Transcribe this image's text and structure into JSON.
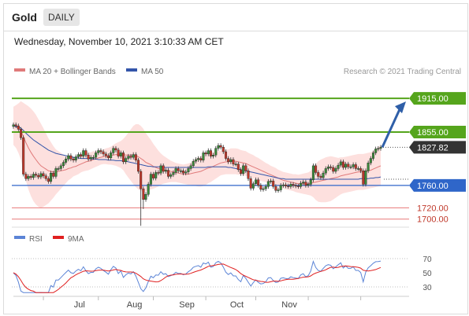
{
  "header": {
    "asset": "Gold",
    "timeframe": "DAILY"
  },
  "timestamp": "Wednesday, November 10, 2021 3:10:33 AM CET",
  "colors": {
    "up": "#3a8a3a",
    "down": "#c0392b",
    "ma20": "#e07a7a",
    "ma50": "#3355aa",
    "band": "#fde0de",
    "resistance": "#55a51c",
    "support": "#2f66c9",
    "target_line": "#e87878",
    "current": "#333333",
    "arrow": "#2f5fa8",
    "rsi": "#5b84d6",
    "rsi_ma": "#e02020"
  },
  "chart_data": [
    {
      "type": "candlestick",
      "legend": [
        {
          "label": "MA 20 + Bollinger Bands",
          "color": "#e07a7a"
        },
        {
          "label": "MA 50",
          "color": "#3355aa"
        }
      ],
      "credit": "Research © 2021 Trading Central",
      "x_ticks": [
        "Jul",
        "Aug",
        "Sep",
        "Oct",
        "Nov"
      ],
      "ylim": [
        1680,
        1960
      ],
      "levels": [
        {
          "value": 1915.0,
          "label": "1915.00",
          "kind": "resistance"
        },
        {
          "value": 1855.0,
          "label": "1855.00",
          "kind": "resistance"
        },
        {
          "value": 1827.82,
          "label": "1827.82",
          "kind": "current"
        },
        {
          "value": 1760.0,
          "label": "1760.00",
          "kind": "support"
        },
        {
          "value": 1720.0,
          "label": "1720.00",
          "kind": "target"
        },
        {
          "value": 1700.0,
          "label": "1700.00",
          "kind": "target"
        }
      ],
      "projection": {
        "from": 1827.82,
        "to": 1915.0
      },
      "closes": [
        1868,
        1866,
        1860,
        1845,
        1780,
        1772,
        1776,
        1774,
        1780,
        1778,
        1775,
        1781,
        1777,
        1772,
        1767,
        1782,
        1776,
        1790,
        1790,
        1795,
        1801,
        1807,
        1813,
        1807,
        1805,
        1811,
        1815,
        1812,
        1822,
        1814,
        1807,
        1810,
        1810,
        1818,
        1822,
        1820,
        1816,
        1813,
        1809,
        1818,
        1826,
        1823,
        1812,
        1818,
        1802,
        1808,
        1812,
        1810,
        1815,
        1805,
        1785,
        1754,
        1735,
        1744,
        1762,
        1780,
        1773,
        1783,
        1782,
        1795,
        1785,
        1787,
        1776,
        1779,
        1783,
        1790,
        1786,
        1786,
        1782,
        1784,
        1790,
        1795,
        1803,
        1806,
        1808,
        1805,
        1818,
        1816,
        1822,
        1812,
        1814,
        1826,
        1831,
        1828,
        1820,
        1808,
        1802,
        1806,
        1798,
        1798,
        1788,
        1781,
        1795,
        1786,
        1772,
        1755,
        1763,
        1770,
        1760,
        1753,
        1754,
        1758,
        1767,
        1768,
        1758,
        1751,
        1752,
        1760,
        1761,
        1759,
        1758,
        1762,
        1760,
        1759,
        1758,
        1764,
        1766,
        1760,
        1762,
        1770,
        1795,
        1783,
        1776,
        1774,
        1782,
        1790,
        1793,
        1792,
        1785,
        1790,
        1796,
        1802,
        1792,
        1798,
        1793,
        1793,
        1797,
        1790,
        1790,
        1786,
        1762,
        1786,
        1800,
        1808,
        1818,
        1825,
        1825.8,
        1827.82
      ],
      "ma20": [
        1866,
        1865,
        1862,
        1858,
        1847,
        1836,
        1827,
        1819,
        1812,
        1806,
        1800,
        1795,
        1792,
        1789,
        1786,
        1785,
        1784,
        1784,
        1785,
        1786,
        1787,
        1788,
        1790,
        1791,
        1793,
        1794,
        1796,
        1798,
        1800,
        1802,
        1803,
        1804,
        1806,
        1807,
        1809,
        1810,
        1811,
        1812,
        1812,
        1813,
        1814,
        1815,
        1815,
        1815,
        1815,
        1814,
        1814,
        1814,
        1814,
        1813,
        1811,
        1808,
        1805,
        1801,
        1799,
        1797,
        1794,
        1792,
        1790,
        1789,
        1788,
        1787,
        1786,
        1785,
        1784,
        1783,
        1782,
        1781,
        1780,
        1780,
        1780,
        1781,
        1782,
        1783,
        1784,
        1785,
        1787,
        1789,
        1791,
        1792,
        1794,
        1796,
        1798,
        1800,
        1801,
        1802,
        1802,
        1803,
        1803,
        1803,
        1802,
        1801,
        1800,
        1799,
        1797,
        1795,
        1793,
        1791,
        1789,
        1787,
        1785,
        1783,
        1781,
        1779,
        1777,
        1775,
        1773,
        1771,
        1769,
        1768,
        1767,
        1766,
        1765,
        1764,
        1763,
        1763,
        1763,
        1763,
        1763,
        1764,
        1765,
        1766,
        1767,
        1768,
        1769,
        1770,
        1771,
        1772,
        1773,
        1774,
        1775,
        1777,
        1778,
        1779,
        1780,
        1781,
        1782,
        1783,
        1784,
        1784,
        1784,
        1785,
        1786,
        1787,
        1789,
        1791,
        1793,
        1795
      ],
      "ma50": [
        1866,
        1865,
        1864,
        1862,
        1858,
        1853,
        1849,
        1845,
        1841,
        1838,
        1835,
        1832,
        1829,
        1826,
        1823,
        1821,
        1819,
        1817,
        1816,
        1815,
        1814,
        1813,
        1812,
        1811,
        1810,
        1809,
        1809,
        1808,
        1808,
        1808,
        1808,
        1807,
        1807,
        1807,
        1806,
        1806,
        1806,
        1806,
        1805,
        1805,
        1805,
        1804,
        1804,
        1804,
        1803,
        1803,
        1802,
        1801,
        1800,
        1799,
        1798,
        1797,
        1796,
        1795,
        1794,
        1794,
        1793,
        1793,
        1793,
        1793,
        1792,
        1792,
        1792,
        1792,
        1792,
        1792,
        1792,
        1792,
        1792,
        1792,
        1792,
        1792,
        1792,
        1792,
        1792,
        1792,
        1792,
        1792,
        1793,
        1793,
        1793,
        1793,
        1793,
        1793,
        1793,
        1793,
        1792,
        1792,
        1791,
        1790,
        1789,
        1788,
        1787,
        1786,
        1785,
        1784,
        1783,
        1782,
        1781,
        1780,
        1779,
        1778,
        1777,
        1776,
        1775,
        1774,
        1773,
        1772,
        1772,
        1771,
        1771,
        1771,
        1771,
        1771,
        1771,
        1771,
        1771,
        1771,
        1771,
        1771,
        1771,
        1771,
        1771,
        1771,
        1771,
        1771,
        1771,
        1771,
        1771,
        1771,
        1771,
        1771,
        1771,
        1771,
        1771,
        1771,
        1771,
        1771,
        1771,
        1772,
        1772,
        1772,
        1772,
        1773,
        1773,
        1774,
        1774,
        1775
      ],
      "band_width": [
        34,
        38,
        44,
        52,
        60,
        68,
        74,
        78,
        80,
        80,
        78,
        75,
        70,
        64,
        58,
        52,
        46,
        40,
        36,
        32,
        28,
        24,
        21,
        19,
        17,
        16,
        16,
        15,
        15,
        16,
        16,
        15,
        15,
        14,
        14,
        13,
        13,
        14,
        15,
        16,
        18,
        20,
        22,
        24,
        28,
        34,
        40,
        46,
        52,
        56,
        58,
        58,
        56,
        52,
        48,
        44,
        40,
        36,
        32,
        28,
        25,
        23,
        21,
        19,
        18,
        17,
        17,
        17,
        17,
        18,
        19,
        20,
        22,
        24,
        26,
        27,
        28,
        28,
        27,
        26,
        25,
        24,
        23,
        22,
        22,
        22,
        22,
        23,
        23,
        23,
        23,
        22,
        22,
        22,
        21,
        21,
        21,
        20,
        20,
        19,
        18,
        17,
        17,
        16,
        16,
        16,
        15,
        15,
        15,
        15,
        15,
        15,
        15,
        16,
        16,
        17,
        18,
        19,
        20,
        22,
        26,
        32,
        36,
        38,
        39,
        40,
        40,
        40,
        38,
        36,
        34,
        33,
        32,
        32,
        32,
        32,
        32,
        32,
        32,
        32,
        32,
        32,
        32,
        32,
        33,
        34,
        35,
        36
      ]
    },
    {
      "type": "line",
      "legend": [
        {
          "label": "RSI",
          "color": "#5b84d6"
        },
        {
          "label": "9MA",
          "color": "#e02020"
        }
      ],
      "ylim": [
        20,
        80
      ],
      "y_ticks": [
        "70",
        "50",
        "30"
      ],
      "guides": [
        70,
        30
      ]
    }
  ]
}
